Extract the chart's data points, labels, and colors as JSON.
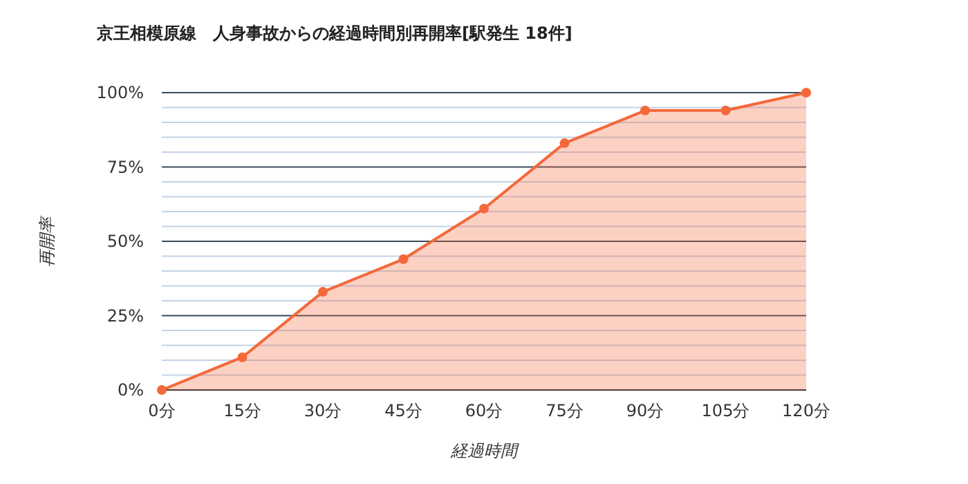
{
  "chart_data": {
    "type": "area",
    "title": "京王相模原線　人身事故からの経過時間別再開率[駅発生 18件]",
    "xlabel": "経過時間",
    "ylabel": "再開率",
    "x": [
      0,
      15,
      30,
      45,
      60,
      75,
      90,
      105,
      120
    ],
    "series": [
      {
        "color": "#f4683a",
        "values": [
          0,
          11,
          33,
          44,
          61,
          83,
          94,
          94,
          100
        ]
      }
    ],
    "xlim": [
      0,
      120
    ],
    "xticks": [
      {
        "value": 0,
        "label": "0分"
      },
      {
        "value": 15,
        "label": "15分"
      },
      {
        "value": 30,
        "label": "30分"
      },
      {
        "value": 45,
        "label": "45分"
      },
      {
        "value": 60,
        "label": "60分"
      },
      {
        "value": 75,
        "label": "75分"
      },
      {
        "value": 90,
        "label": "90分"
      },
      {
        "value": 105,
        "label": "105分"
      },
      {
        "value": 120,
        "label": "120分"
      }
    ],
    "ylim": [
      0,
      100
    ],
    "yticks": [
      {
        "value": 0,
        "label": "0%"
      },
      {
        "value": 5,
        "label": null
      },
      {
        "value": 10,
        "label": null
      },
      {
        "value": 15,
        "label": null
      },
      {
        "value": 20,
        "label": null
      },
      {
        "value": 25,
        "label": "25%"
      },
      {
        "value": 30,
        "label": null
      },
      {
        "value": 35,
        "label": null
      },
      {
        "value": 40,
        "label": null
      },
      {
        "value": 45,
        "label": null
      },
      {
        "value": 50,
        "label": "50%"
      },
      {
        "value": 55,
        "label": null
      },
      {
        "value": 60,
        "label": null
      },
      {
        "value": 65,
        "label": null
      },
      {
        "value": 70,
        "label": null
      },
      {
        "value": 75,
        "label": "75%"
      },
      {
        "value": 80,
        "label": null
      },
      {
        "value": 85,
        "label": null
      },
      {
        "value": 90,
        "label": null
      },
      {
        "value": 95,
        "label": null
      },
      {
        "value": 100,
        "label": "100%"
      }
    ],
    "grid": "y",
    "marker": "circle"
  }
}
